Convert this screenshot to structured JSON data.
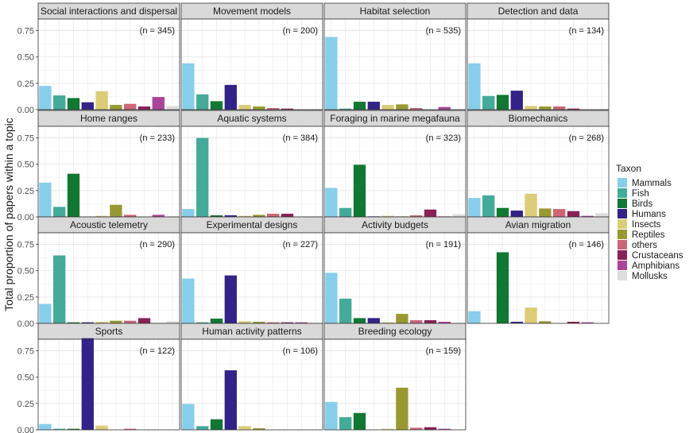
{
  "chart_data": {
    "type": "bar",
    "ylabel": "Total proportion of papers within a topic",
    "ylim": [
      0,
      0.86
    ],
    "yticks": [
      "0.00",
      "0.25",
      "0.50",
      "0.75"
    ],
    "ytick_values": [
      0,
      0.25,
      0.5,
      0.75
    ],
    "grid": true,
    "legend": {
      "title": "Taxon",
      "position": "right",
      "entries": [
        "Mammals",
        "Fish",
        "Birds",
        "Humans",
        "Insects",
        "Reptiles",
        "others",
        "Crustaceans",
        "Amphibians",
        "Mollusks"
      ]
    },
    "categories": [
      "Mammals",
      "Fish",
      "Birds",
      "Humans",
      "Insects",
      "Reptiles",
      "others",
      "Crustaceans",
      "Amphibians",
      "Mollusks"
    ],
    "colors": [
      "#87ceeb",
      "#44aa99",
      "#117733",
      "#332288",
      "#ddcc77",
      "#999933",
      "#cc6677",
      "#882255",
      "#aa4499",
      "#dddddd"
    ],
    "panels": [
      {
        "title": "Social interactions and dispersal",
        "n": "(n = 345)",
        "values": [
          0.225,
          0.135,
          0.11,
          0.07,
          0.175,
          0.045,
          0.055,
          0.03,
          0.12,
          0.035
        ]
      },
      {
        "title": "Movement models",
        "n": "(n = 200)",
        "values": [
          0.44,
          0.145,
          0.08,
          0.235,
          0.045,
          0.03,
          0.015,
          0.01,
          0,
          0
        ]
      },
      {
        "title": "Habitat selection",
        "n": "(n = 535)",
        "values": [
          0.69,
          0.01,
          0.075,
          0.075,
          0.045,
          0.05,
          0.015,
          0,
          0.025,
          0
        ]
      },
      {
        "title": "Detection and data",
        "n": "(n = 134)",
        "values": [
          0.44,
          0.13,
          0.14,
          0.18,
          0.035,
          0.03,
          0.03,
          0.01,
          0,
          0
        ]
      },
      {
        "title": "Home ranges",
        "n": "(n = 233)",
        "values": [
          0.325,
          0.095,
          0.41,
          0,
          0.01,
          0.115,
          0.02,
          0,
          0.02,
          0
        ]
      },
      {
        "title": "Aquatic systems",
        "n": "(n = 384)",
        "values": [
          0.075,
          0.75,
          0.015,
          0.015,
          0.01,
          0.02,
          0.03,
          0.03,
          0,
          0.005
        ]
      },
      {
        "title": "Foraging in marine megafauna",
        "n": "(n = 323)",
        "values": [
          0.275,
          0.085,
          0.495,
          0.005,
          0.01,
          0.005,
          0.015,
          0.07,
          0.005,
          0.025
        ]
      },
      {
        "title": "Biomechanics",
        "n": "(n = 268)",
        "values": [
          0.18,
          0.205,
          0.085,
          0.06,
          0.22,
          0.08,
          0.075,
          0.055,
          0.01,
          0.035
        ]
      },
      {
        "title": "Acoustic telemetry",
        "n": "(n = 290)",
        "values": [
          0.185,
          0.645,
          0.01,
          0.01,
          0.015,
          0.025,
          0.025,
          0.05,
          0,
          0.02
        ]
      },
      {
        "title": "Experimental designs",
        "n": "(n = 227)",
        "values": [
          0.425,
          0.01,
          0.045,
          0.455,
          0.02,
          0.015,
          0.01,
          0.01,
          0.01,
          0
        ]
      },
      {
        "title": "Activity budgets",
        "n": "(n = 191)",
        "values": [
          0.48,
          0.235,
          0.05,
          0.05,
          0.01,
          0.09,
          0.03,
          0.03,
          0.015,
          0
        ]
      },
      {
        "title": "Avian migration",
        "n": "(n = 146)",
        "values": [
          0.115,
          0,
          0.675,
          0.015,
          0.15,
          0.02,
          0,
          0.015,
          0.01,
          0
        ]
      },
      {
        "title": "Sports",
        "n": "(n = 122)",
        "values": [
          0.055,
          0.01,
          0.01,
          0.87,
          0.04,
          0,
          0.01,
          0,
          0,
          0
        ]
      },
      {
        "title": "Human activity patterns",
        "n": "(n = 106)",
        "values": [
          0.245,
          0.035,
          0.1,
          0.565,
          0.035,
          0.015,
          0,
          0,
          0,
          0
        ]
      },
      {
        "title": "Breeding ecology",
        "n": "(n = 159)",
        "values": [
          0.265,
          0.12,
          0.16,
          0,
          0.01,
          0.4,
          0.02,
          0.025,
          0.01,
          0
        ]
      }
    ]
  }
}
